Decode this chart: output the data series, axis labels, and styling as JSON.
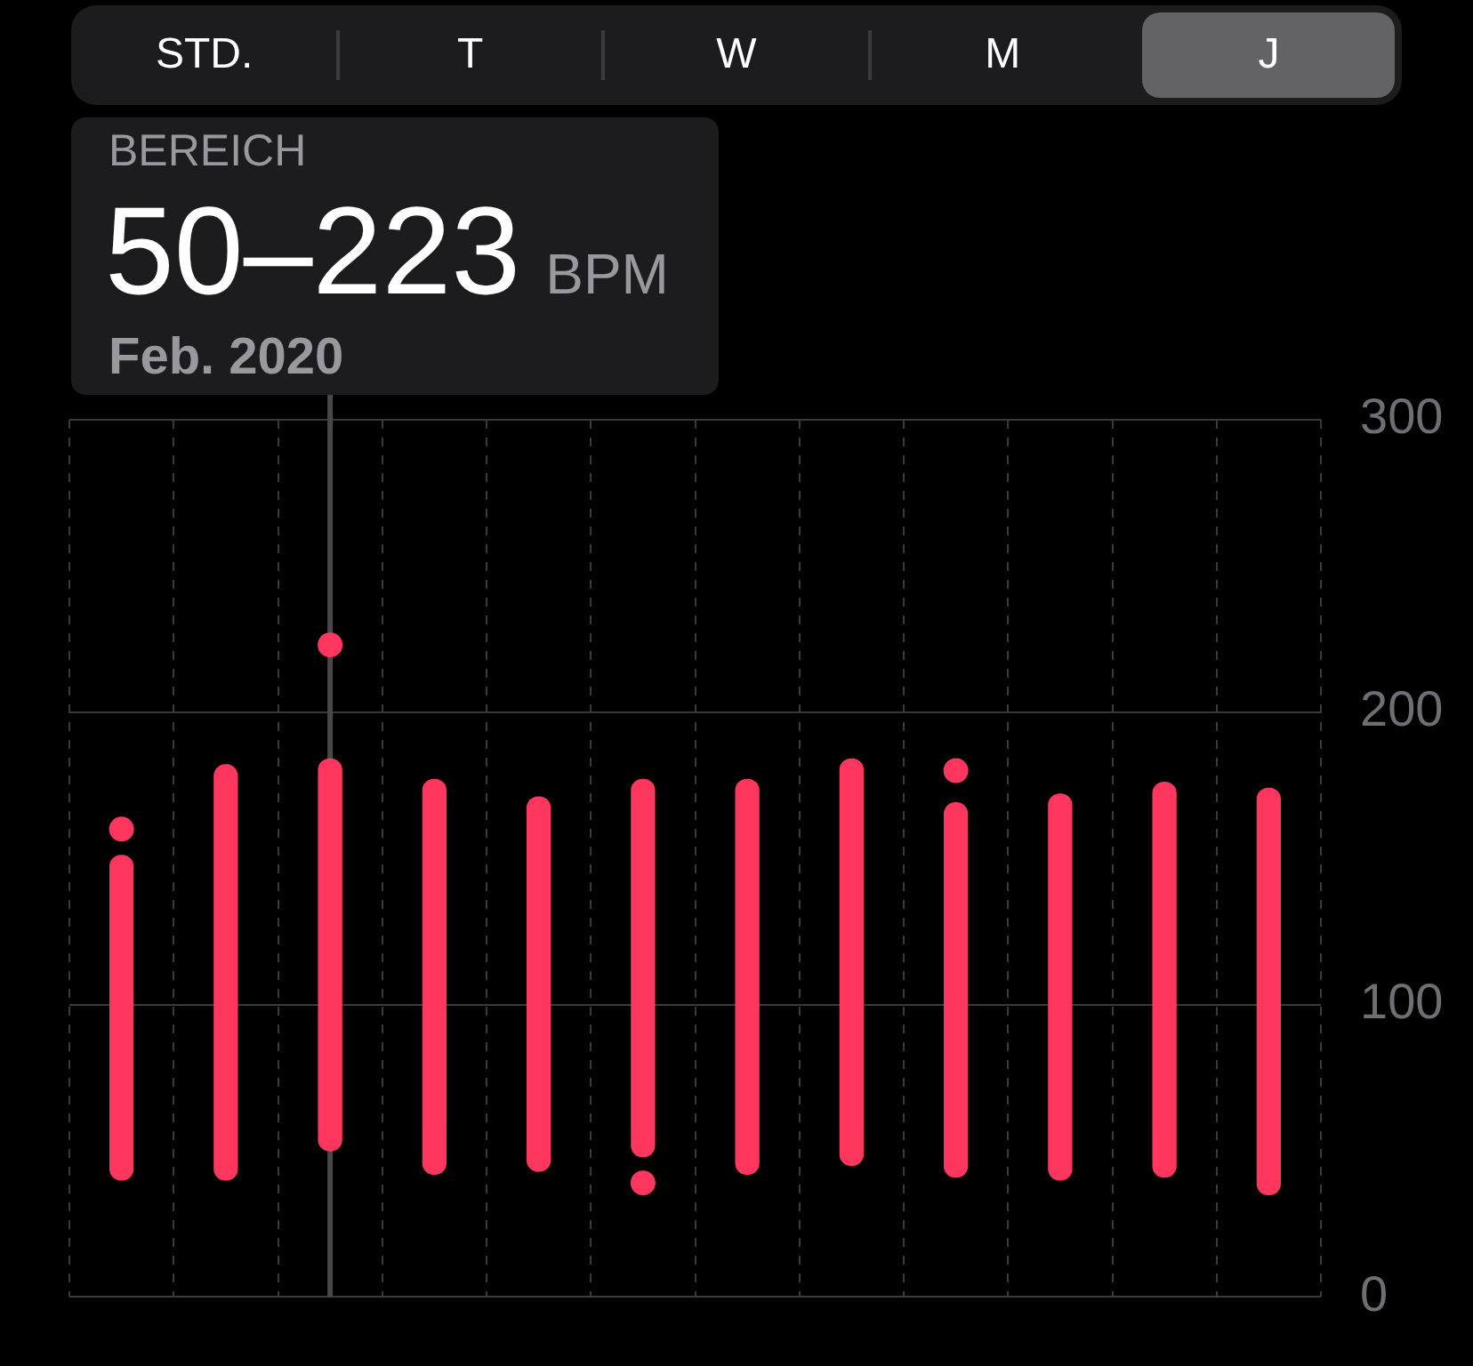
{
  "chart_data": {
    "type": "bar",
    "categories": [
      null,
      null,
      null,
      null,
      null,
      null,
      null,
      null,
      null,
      null,
      null,
      null
    ],
    "series": [
      {
        "color": "#ff375f",
        "base": [
          40,
          40,
          50,
          42,
          43,
          48,
          42,
          45,
          41,
          40,
          41,
          35
        ],
        "values": [
          111,
          142,
          134,
          135,
          128,
          129,
          135,
          139,
          128,
          132,
          135,
          139
        ]
      },
      {
        "type": "scatter",
        "color": "#ff375f",
        "values": [
          160,
          null,
          223,
          null,
          null,
          39,
          null,
          null,
          180,
          null,
          null,
          null
        ]
      }
    ],
    "ylim": [
      0,
      300
    ],
    "yticks": [
      0,
      100,
      200,
      300
    ],
    "grid": true,
    "tick_labels": "y",
    "marker": "circle",
    "annotations": [
      "STD.",
      "T",
      "W",
      "M",
      "J",
      "BEREICH",
      "50–223",
      "BPM",
      "Feb. 2020"
    ]
  }
}
